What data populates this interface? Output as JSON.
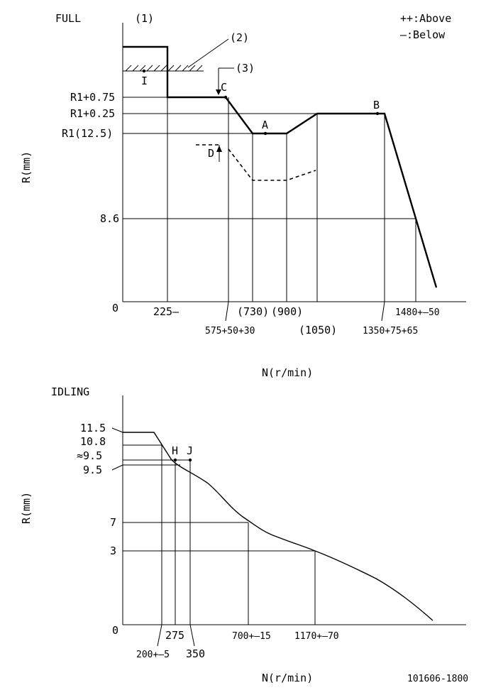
{
  "full": {
    "title": "FULL",
    "legend_above": "++:Above",
    "legend_below": "—:Below",
    "callout_1": "(1)",
    "callout_2": "(2)",
    "callout_3": "(3)",
    "point_I": "I",
    "point_C": "C",
    "point_A": "A",
    "point_B": "B",
    "point_D": "D",
    "y_axis_label": "R(mm)",
    "y_ticks": [
      "R1+0.75",
      "R1+0.25",
      "R1(12.5)",
      "8.6",
      "0"
    ],
    "x_ticks": {
      "t225": "225—",
      "t730": "(730)",
      "t900": "(900)",
      "t575": "575+50+30",
      "t1050": "(1050)",
      "t1350": "1350+75+65",
      "t1480": "1480+—50"
    },
    "x_axis_label": "N(r/min)"
  },
  "idling": {
    "title": "IDLING",
    "point_H": "H",
    "point_J": "J",
    "y_axis_label": "R(mm)",
    "y_ticks": [
      "11.5",
      "10.8",
      "≈9.5",
      "9.5",
      "7",
      "3",
      "0"
    ],
    "x_ticks": {
      "t275": "275",
      "t700": "700+—15",
      "t1170": "1170+—70",
      "t200": "200+—5",
      "t350": "350"
    },
    "x_axis_label": "N(r/min)"
  },
  "code": "101606-1800"
}
